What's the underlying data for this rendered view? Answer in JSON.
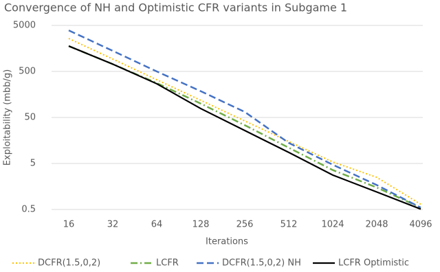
{
  "chart_data": {
    "type": "line",
    "title": "Convergence of NH and Optimistic CFR variants in Subgame 1",
    "x_label": "Iterations",
    "y_label": "Exploitability (mbb/g)",
    "categories": [
      "16",
      "32",
      "64",
      "128",
      "256",
      "512",
      "1024",
      "2048",
      "4096"
    ],
    "y_scale": "log",
    "ylim": [
      0.5,
      5000
    ],
    "yticks": [
      0.5,
      5,
      50,
      500,
      5000
    ],
    "grid": true,
    "legend": "bottom",
    "series": [
      {
        "name": "DCFR(1.5,0,2)",
        "color": "#ffc000",
        "style": "dotted",
        "values": [
          2600,
          930,
          330,
          118,
          42,
          15,
          5.4,
          2.5,
          0.65
        ]
      },
      {
        "name": "LCFR",
        "color": "#70ad47",
        "style": "dashdot",
        "values": [
          1780,
          720,
          280,
          100,
          34,
          11,
          3.6,
          1.5,
          0.55
        ]
      },
      {
        "name": "DCFR(1.5,0,2) NH",
        "color": "#4472c4",
        "style": "dashed",
        "values": [
          3900,
          1400,
          500,
          186,
          66,
          14,
          4.7,
          1.7,
          0.55
        ]
      },
      {
        "name": "LCFR Optimistic",
        "color": "#000000",
        "style": "solid",
        "values": [
          1780,
          720,
          270,
          78,
          26,
          8.7,
          2.8,
          1.2,
          0.51
        ]
      }
    ]
  }
}
